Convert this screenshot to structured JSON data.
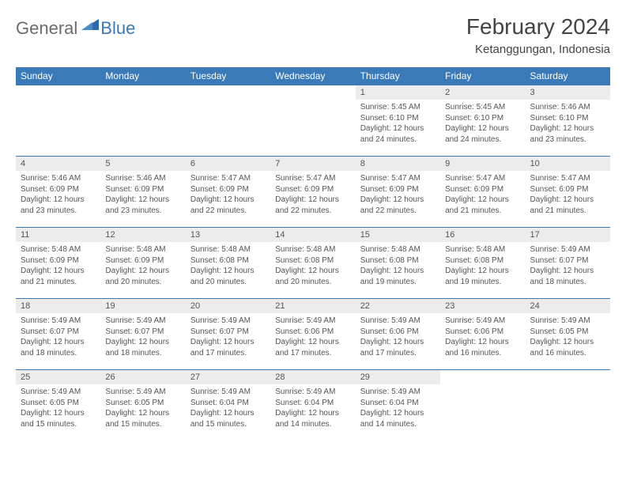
{
  "brand": {
    "text1": "General",
    "text2": "Blue"
  },
  "title": "February 2024",
  "location": "Ketanggungan, Indonesia",
  "colors": {
    "header_bg": "#3a7ab8",
    "header_text": "#ffffff",
    "daynum_bg": "#ececec",
    "cell_border": "#3a7ab8",
    "body_text": "#555555",
    "brand_gray": "#6b6b6b",
    "brand_blue": "#3a7ab8"
  },
  "daynames": [
    "Sunday",
    "Monday",
    "Tuesday",
    "Wednesday",
    "Thursday",
    "Friday",
    "Saturday"
  ],
  "weeks": [
    [
      {
        "day": "",
        "sunrise": "",
        "sunset": "",
        "daylight": ""
      },
      {
        "day": "",
        "sunrise": "",
        "sunset": "",
        "daylight": ""
      },
      {
        "day": "",
        "sunrise": "",
        "sunset": "",
        "daylight": ""
      },
      {
        "day": "",
        "sunrise": "",
        "sunset": "",
        "daylight": ""
      },
      {
        "day": "1",
        "sunrise": "Sunrise: 5:45 AM",
        "sunset": "Sunset: 6:10 PM",
        "daylight": "Daylight: 12 hours and 24 minutes."
      },
      {
        "day": "2",
        "sunrise": "Sunrise: 5:45 AM",
        "sunset": "Sunset: 6:10 PM",
        "daylight": "Daylight: 12 hours and 24 minutes."
      },
      {
        "day": "3",
        "sunrise": "Sunrise: 5:46 AM",
        "sunset": "Sunset: 6:10 PM",
        "daylight": "Daylight: 12 hours and 23 minutes."
      }
    ],
    [
      {
        "day": "4",
        "sunrise": "Sunrise: 5:46 AM",
        "sunset": "Sunset: 6:09 PM",
        "daylight": "Daylight: 12 hours and 23 minutes."
      },
      {
        "day": "5",
        "sunrise": "Sunrise: 5:46 AM",
        "sunset": "Sunset: 6:09 PM",
        "daylight": "Daylight: 12 hours and 23 minutes."
      },
      {
        "day": "6",
        "sunrise": "Sunrise: 5:47 AM",
        "sunset": "Sunset: 6:09 PM",
        "daylight": "Daylight: 12 hours and 22 minutes."
      },
      {
        "day": "7",
        "sunrise": "Sunrise: 5:47 AM",
        "sunset": "Sunset: 6:09 PM",
        "daylight": "Daylight: 12 hours and 22 minutes."
      },
      {
        "day": "8",
        "sunrise": "Sunrise: 5:47 AM",
        "sunset": "Sunset: 6:09 PM",
        "daylight": "Daylight: 12 hours and 22 minutes."
      },
      {
        "day": "9",
        "sunrise": "Sunrise: 5:47 AM",
        "sunset": "Sunset: 6:09 PM",
        "daylight": "Daylight: 12 hours and 21 minutes."
      },
      {
        "day": "10",
        "sunrise": "Sunrise: 5:47 AM",
        "sunset": "Sunset: 6:09 PM",
        "daylight": "Daylight: 12 hours and 21 minutes."
      }
    ],
    [
      {
        "day": "11",
        "sunrise": "Sunrise: 5:48 AM",
        "sunset": "Sunset: 6:09 PM",
        "daylight": "Daylight: 12 hours and 21 minutes."
      },
      {
        "day": "12",
        "sunrise": "Sunrise: 5:48 AM",
        "sunset": "Sunset: 6:09 PM",
        "daylight": "Daylight: 12 hours and 20 minutes."
      },
      {
        "day": "13",
        "sunrise": "Sunrise: 5:48 AM",
        "sunset": "Sunset: 6:08 PM",
        "daylight": "Daylight: 12 hours and 20 minutes."
      },
      {
        "day": "14",
        "sunrise": "Sunrise: 5:48 AM",
        "sunset": "Sunset: 6:08 PM",
        "daylight": "Daylight: 12 hours and 20 minutes."
      },
      {
        "day": "15",
        "sunrise": "Sunrise: 5:48 AM",
        "sunset": "Sunset: 6:08 PM",
        "daylight": "Daylight: 12 hours and 19 minutes."
      },
      {
        "day": "16",
        "sunrise": "Sunrise: 5:48 AM",
        "sunset": "Sunset: 6:08 PM",
        "daylight": "Daylight: 12 hours and 19 minutes."
      },
      {
        "day": "17",
        "sunrise": "Sunrise: 5:49 AM",
        "sunset": "Sunset: 6:07 PM",
        "daylight": "Daylight: 12 hours and 18 minutes."
      }
    ],
    [
      {
        "day": "18",
        "sunrise": "Sunrise: 5:49 AM",
        "sunset": "Sunset: 6:07 PM",
        "daylight": "Daylight: 12 hours and 18 minutes."
      },
      {
        "day": "19",
        "sunrise": "Sunrise: 5:49 AM",
        "sunset": "Sunset: 6:07 PM",
        "daylight": "Daylight: 12 hours and 18 minutes."
      },
      {
        "day": "20",
        "sunrise": "Sunrise: 5:49 AM",
        "sunset": "Sunset: 6:07 PM",
        "daylight": "Daylight: 12 hours and 17 minutes."
      },
      {
        "day": "21",
        "sunrise": "Sunrise: 5:49 AM",
        "sunset": "Sunset: 6:06 PM",
        "daylight": "Daylight: 12 hours and 17 minutes."
      },
      {
        "day": "22",
        "sunrise": "Sunrise: 5:49 AM",
        "sunset": "Sunset: 6:06 PM",
        "daylight": "Daylight: 12 hours and 17 minutes."
      },
      {
        "day": "23",
        "sunrise": "Sunrise: 5:49 AM",
        "sunset": "Sunset: 6:06 PM",
        "daylight": "Daylight: 12 hours and 16 minutes."
      },
      {
        "day": "24",
        "sunrise": "Sunrise: 5:49 AM",
        "sunset": "Sunset: 6:05 PM",
        "daylight": "Daylight: 12 hours and 16 minutes."
      }
    ],
    [
      {
        "day": "25",
        "sunrise": "Sunrise: 5:49 AM",
        "sunset": "Sunset: 6:05 PM",
        "daylight": "Daylight: 12 hours and 15 minutes."
      },
      {
        "day": "26",
        "sunrise": "Sunrise: 5:49 AM",
        "sunset": "Sunset: 6:05 PM",
        "daylight": "Daylight: 12 hours and 15 minutes."
      },
      {
        "day": "27",
        "sunrise": "Sunrise: 5:49 AM",
        "sunset": "Sunset: 6:04 PM",
        "daylight": "Daylight: 12 hours and 15 minutes."
      },
      {
        "day": "28",
        "sunrise": "Sunrise: 5:49 AM",
        "sunset": "Sunset: 6:04 PM",
        "daylight": "Daylight: 12 hours and 14 minutes."
      },
      {
        "day": "29",
        "sunrise": "Sunrise: 5:49 AM",
        "sunset": "Sunset: 6:04 PM",
        "daylight": "Daylight: 12 hours and 14 minutes."
      },
      {
        "day": "",
        "sunrise": "",
        "sunset": "",
        "daylight": ""
      },
      {
        "day": "",
        "sunrise": "",
        "sunset": "",
        "daylight": ""
      }
    ]
  ]
}
